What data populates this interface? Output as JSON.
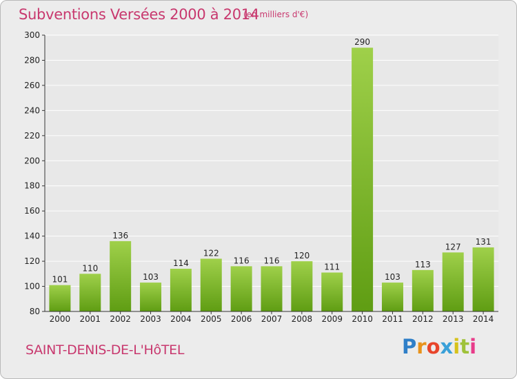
{
  "header": {
    "title": "Subventions Versées 2000 à 2014",
    "unit": "(en milliers d'€)"
  },
  "footer": {
    "commune": "SAINT-DENIS-DE-L'HôTEL",
    "logo_text": "Proxiti",
    "logo_colors": [
      "#2f7fc8",
      "#e8931c",
      "#e8452b",
      "#3aa0d8",
      "#d6c21c",
      "#9fc23a",
      "#e83c8a"
    ]
  },
  "colors": {
    "bar_light": "#9fd04a",
    "bar_dark": "#5f9d13",
    "grid": "#ffffff",
    "axis": "#333333",
    "plot_bg": "#e8e8e8"
  },
  "chart_data": {
    "type": "bar",
    "title": "Subventions Versées 2000 à 2014",
    "subtitle": "(en milliers d'€)",
    "xlabel": "",
    "ylabel": "",
    "categories": [
      "2000",
      "2001",
      "2002",
      "2003",
      "2004",
      "2005",
      "2006",
      "2007",
      "2008",
      "2009",
      "2010",
      "2011",
      "2012",
      "2013",
      "2014"
    ],
    "values": [
      101,
      110,
      136,
      103,
      114,
      122,
      116,
      116,
      120,
      111,
      290,
      103,
      113,
      127,
      131
    ],
    "ylim": [
      80,
      300
    ],
    "yticks": [
      80,
      100,
      120,
      140,
      160,
      180,
      200,
      220,
      240,
      260,
      280,
      300
    ],
    "grid": true,
    "legend": "none"
  }
}
